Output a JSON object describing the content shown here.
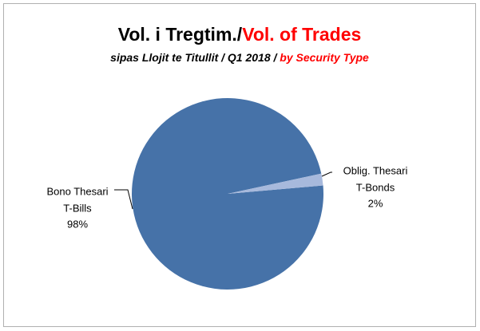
{
  "chart_data": {
    "type": "pie",
    "title": "Vol. i Tregtim./",
    "title_en": "Vol. of Trades",
    "subtitle": "sipas Llojit te Titullit / Q1 2018 / ",
    "subtitle_en": "by Security Type",
    "categories": [
      "Bono Thesari",
      "Oblig. Thesari"
    ],
    "categories_en": [
      "T-Bills",
      "T-Bonds"
    ],
    "values": [
      98,
      2
    ],
    "value_labels": [
      "98%",
      "2%"
    ],
    "colors": [
      "#4672a8",
      "#a7b9dc"
    ]
  }
}
